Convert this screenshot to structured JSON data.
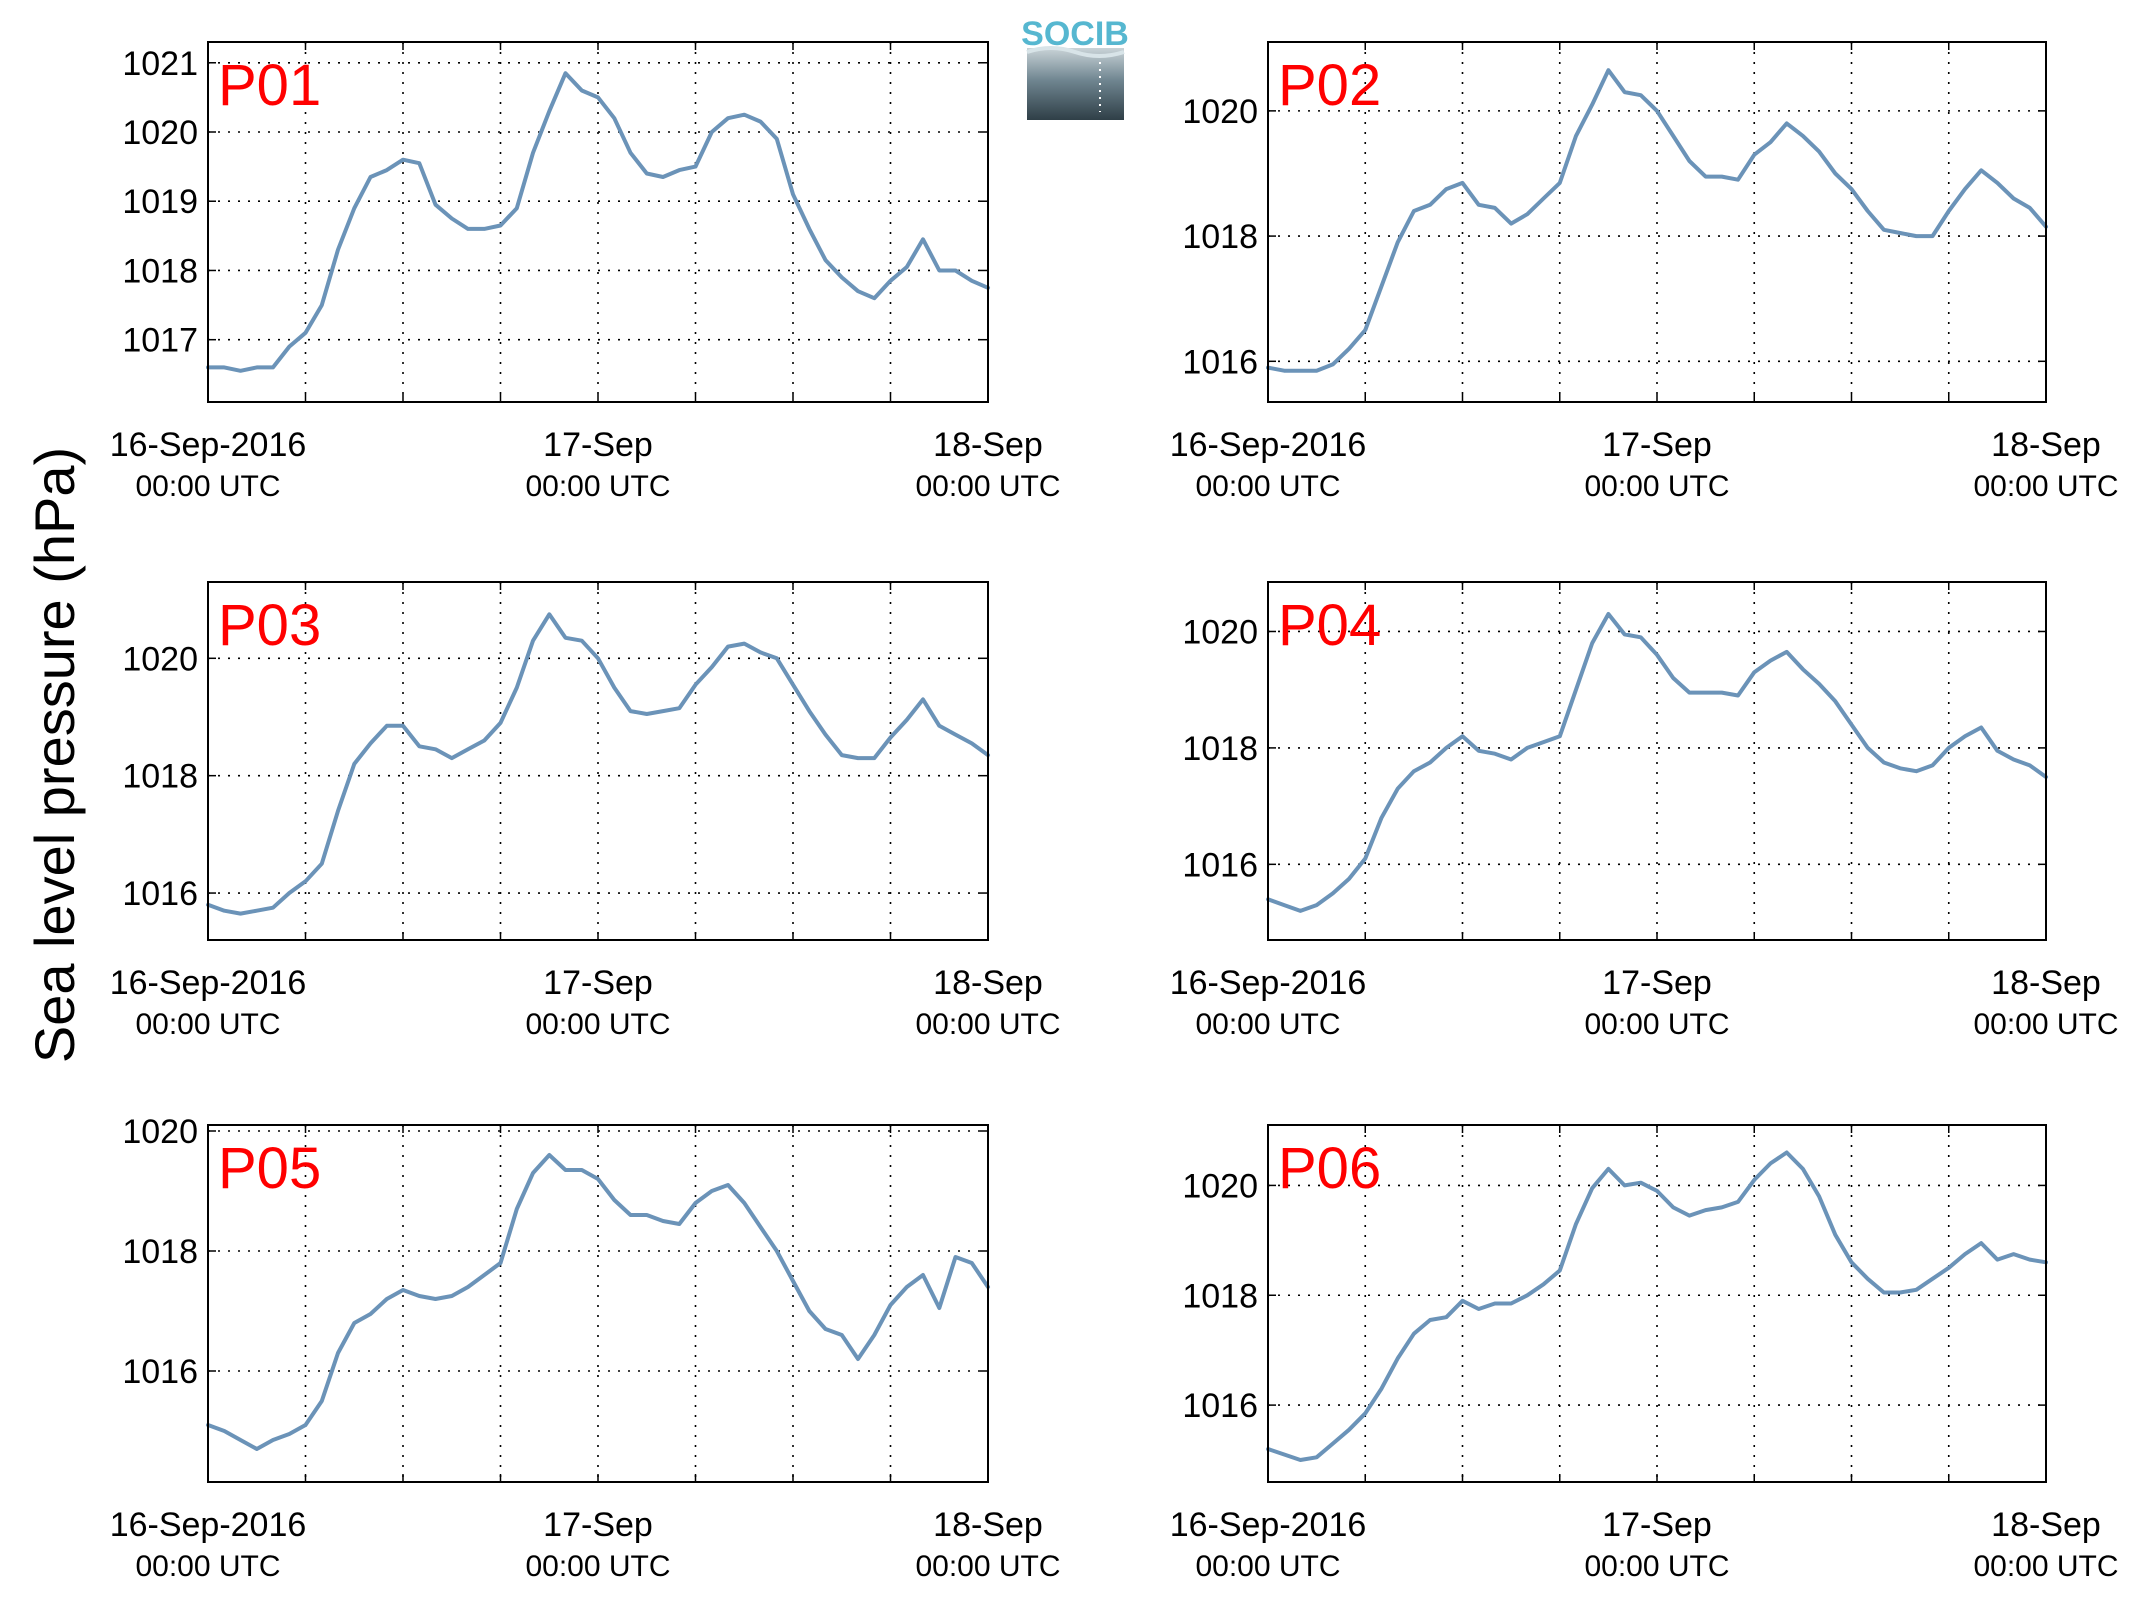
{
  "ylabel": "Sea level pressure (hPa)",
  "logo_text": "SOCIB",
  "colors": {
    "line": "#6b93b8",
    "panel_label": "#ff0000",
    "logo_top": "#56b7d0",
    "logo_bottom": "#33464f"
  },
  "chart_data": [
    {
      "type": "line",
      "title": "P01",
      "x_tick_labels": [
        {
          "main": "16-Sep-2016",
          "sub": "00:00 UTC"
        },
        {
          "main": "17-Sep",
          "sub": "00:00 UTC"
        },
        {
          "main": "18-Sep",
          "sub": "00:00 UTC"
        }
      ],
      "xlim": [
        0,
        48
      ],
      "ylim": [
        1016.1,
        1021.3
      ],
      "y_ticks": [
        1017,
        1018,
        1019,
        1020,
        1021
      ],
      "grid": true,
      "x": [
        0,
        1,
        2,
        3,
        4,
        5,
        6,
        7,
        8,
        9,
        10,
        11,
        12,
        13,
        14,
        15,
        16,
        17,
        18,
        19,
        20,
        21,
        22,
        23,
        24,
        25,
        26,
        27,
        28,
        29,
        30,
        31,
        32,
        33,
        34,
        35,
        36,
        37,
        38,
        39,
        40,
        41,
        42,
        43,
        44,
        45,
        46,
        47,
        48
      ],
      "values": [
        1016.6,
        1016.6,
        1016.55,
        1016.6,
        1016.6,
        1016.9,
        1017.1,
        1017.5,
        1018.3,
        1018.9,
        1019.35,
        1019.45,
        1019.6,
        1019.55,
        1018.95,
        1018.75,
        1018.6,
        1018.6,
        1018.65,
        1018.9,
        1019.7,
        1020.3,
        1020.85,
        1020.6,
        1020.5,
        1020.2,
        1019.7,
        1019.4,
        1019.35,
        1019.45,
        1019.5,
        1020.0,
        1020.2,
        1020.25,
        1020.15,
        1019.9,
        1019.1,
        1018.6,
        1018.15,
        1017.9,
        1017.7,
        1017.6,
        1017.85,
        1018.05,
        1018.45,
        1018.0,
        1018.0,
        1017.85,
        1017.75
      ]
    },
    {
      "type": "line",
      "title": "P02",
      "x_tick_labels": [
        {
          "main": "16-Sep-2016",
          "sub": "00:00 UTC"
        },
        {
          "main": "17-Sep",
          "sub": "00:00 UTC"
        },
        {
          "main": "18-Sep",
          "sub": "00:00 UTC"
        }
      ],
      "xlim": [
        0,
        48
      ],
      "ylim": [
        1015.35,
        1021.1
      ],
      "y_ticks": [
        1016,
        1018,
        1020
      ],
      "grid": true,
      "x": [
        0,
        1,
        2,
        3,
        4,
        5,
        6,
        7,
        8,
        9,
        10,
        11,
        12,
        13,
        14,
        15,
        16,
        17,
        18,
        19,
        20,
        21,
        22,
        23,
        24,
        25,
        26,
        27,
        28,
        29,
        30,
        31,
        32,
        33,
        34,
        35,
        36,
        37,
        38,
        39,
        40,
        41,
        42,
        43,
        44,
        45,
        46,
        47,
        48
      ],
      "values": [
        1015.9,
        1015.85,
        1015.85,
        1015.85,
        1015.95,
        1016.2,
        1016.5,
        1017.2,
        1017.9,
        1018.4,
        1018.5,
        1018.75,
        1018.85,
        1018.5,
        1018.45,
        1018.2,
        1018.35,
        1018.6,
        1018.85,
        1019.6,
        1020.1,
        1020.65,
        1020.3,
        1020.25,
        1020.0,
        1019.6,
        1019.2,
        1018.95,
        1018.95,
        1018.9,
        1019.3,
        1019.5,
        1019.8,
        1019.6,
        1019.35,
        1019.0,
        1018.75,
        1018.4,
        1018.1,
        1018.05,
        1018.0,
        1018.0,
        1018.4,
        1018.75,
        1019.05,
        1018.85,
        1018.6,
        1018.45,
        1018.15
      ]
    },
    {
      "type": "line",
      "title": "P03",
      "x_tick_labels": [
        {
          "main": "16-Sep-2016",
          "sub": "00:00 UTC"
        },
        {
          "main": "17-Sep",
          "sub": "00:00 UTC"
        },
        {
          "main": "18-Sep",
          "sub": "00:00 UTC"
        }
      ],
      "xlim": [
        0,
        48
      ],
      "ylim": [
        1015.2,
        1021.3
      ],
      "y_ticks": [
        1016,
        1018,
        1020
      ],
      "grid": true,
      "x": [
        0,
        1,
        2,
        3,
        4,
        5,
        6,
        7,
        8,
        9,
        10,
        11,
        12,
        13,
        14,
        15,
        16,
        17,
        18,
        19,
        20,
        21,
        22,
        23,
        24,
        25,
        26,
        27,
        28,
        29,
        30,
        31,
        32,
        33,
        34,
        35,
        36,
        37,
        38,
        39,
        40,
        41,
        42,
        43,
        44,
        45,
        46,
        47,
        48
      ],
      "values": [
        1015.8,
        1015.7,
        1015.65,
        1015.7,
        1015.75,
        1016.0,
        1016.2,
        1016.5,
        1017.4,
        1018.2,
        1018.55,
        1018.85,
        1018.85,
        1018.5,
        1018.45,
        1018.3,
        1018.45,
        1018.6,
        1018.9,
        1019.5,
        1020.3,
        1020.75,
        1020.35,
        1020.3,
        1020.0,
        1019.5,
        1019.1,
        1019.05,
        1019.1,
        1019.15,
        1019.55,
        1019.85,
        1020.2,
        1020.25,
        1020.1,
        1020.0,
        1019.55,
        1019.1,
        1018.7,
        1018.35,
        1018.3,
        1018.3,
        1018.65,
        1018.95,
        1019.3,
        1018.85,
        1018.7,
        1018.55,
        1018.35
      ]
    },
    {
      "type": "line",
      "title": "P04",
      "x_tick_labels": [
        {
          "main": "16-Sep-2016",
          "sub": "00:00 UTC"
        },
        {
          "main": "17-Sep",
          "sub": "00:00 UTC"
        },
        {
          "main": "18-Sep",
          "sub": "00:00 UTC"
        }
      ],
      "xlim": [
        0,
        48
      ],
      "ylim": [
        1014.7,
        1020.85
      ],
      "y_ticks": [
        1016,
        1018,
        1020
      ],
      "grid": true,
      "x": [
        0,
        1,
        2,
        3,
        4,
        5,
        6,
        7,
        8,
        9,
        10,
        11,
        12,
        13,
        14,
        15,
        16,
        17,
        18,
        19,
        20,
        21,
        22,
        23,
        24,
        25,
        26,
        27,
        28,
        29,
        30,
        31,
        32,
        33,
        34,
        35,
        36,
        37,
        38,
        39,
        40,
        41,
        42,
        43,
        44,
        45,
        46,
        47,
        48
      ],
      "values": [
        1015.4,
        1015.3,
        1015.2,
        1015.3,
        1015.5,
        1015.75,
        1016.1,
        1016.8,
        1017.3,
        1017.6,
        1017.75,
        1018.0,
        1018.2,
        1017.95,
        1017.9,
        1017.8,
        1018.0,
        1018.1,
        1018.2,
        1019.0,
        1019.8,
        1020.3,
        1019.95,
        1019.9,
        1019.6,
        1019.2,
        1018.95,
        1018.95,
        1018.95,
        1018.9,
        1019.3,
        1019.5,
        1019.65,
        1019.35,
        1019.1,
        1018.8,
        1018.4,
        1018.0,
        1017.75,
        1017.65,
        1017.6,
        1017.7,
        1018.0,
        1018.2,
        1018.35,
        1017.95,
        1017.8,
        1017.7,
        1017.5
      ]
    },
    {
      "type": "line",
      "title": "P05",
      "x_tick_labels": [
        {
          "main": "16-Sep-2016",
          "sub": "00:00 UTC"
        },
        {
          "main": "17-Sep",
          "sub": "00:00 UTC"
        },
        {
          "main": "18-Sep",
          "sub": "00:00 UTC"
        }
      ],
      "xlim": [
        0,
        48
      ],
      "ylim": [
        1014.15,
        1020.1
      ],
      "y_ticks": [
        1016,
        1018,
        1020
      ],
      "grid": true,
      "x": [
        0,
        1,
        2,
        3,
        4,
        5,
        6,
        7,
        8,
        9,
        10,
        11,
        12,
        13,
        14,
        15,
        16,
        17,
        18,
        19,
        20,
        21,
        22,
        23,
        24,
        25,
        26,
        27,
        28,
        29,
        30,
        31,
        32,
        33,
        34,
        35,
        36,
        37,
        38,
        39,
        40,
        41,
        42,
        43,
        44,
        45,
        46,
        47,
        48
      ],
      "values": [
        1015.1,
        1015.0,
        1014.85,
        1014.7,
        1014.85,
        1014.95,
        1015.1,
        1015.5,
        1016.3,
        1016.8,
        1016.95,
        1017.2,
        1017.35,
        1017.25,
        1017.2,
        1017.25,
        1017.4,
        1017.6,
        1017.8,
        1018.7,
        1019.3,
        1019.6,
        1019.35,
        1019.35,
        1019.2,
        1018.85,
        1018.6,
        1018.6,
        1018.5,
        1018.45,
        1018.8,
        1019.0,
        1019.1,
        1018.8,
        1018.4,
        1018.0,
        1017.5,
        1017.0,
        1016.7,
        1016.6,
        1016.2,
        1016.6,
        1017.1,
        1017.4,
        1017.6,
        1017.05,
        1017.9,
        1017.8,
        1017.4
      ]
    },
    {
      "type": "line",
      "title": "P06",
      "x_tick_labels": [
        {
          "main": "16-Sep-2016",
          "sub": "00:00 UTC"
        },
        {
          "main": "17-Sep",
          "sub": "00:00 UTC"
        },
        {
          "main": "18-Sep",
          "sub": "00:00 UTC"
        }
      ],
      "xlim": [
        0,
        48
      ],
      "ylim": [
        1014.6,
        1021.1
      ],
      "y_ticks": [
        1016,
        1018,
        1020
      ],
      "grid": true,
      "x": [
        0,
        1,
        2,
        3,
        4,
        5,
        6,
        7,
        8,
        9,
        10,
        11,
        12,
        13,
        14,
        15,
        16,
        17,
        18,
        19,
        20,
        21,
        22,
        23,
        24,
        25,
        26,
        27,
        28,
        29,
        30,
        31,
        32,
        33,
        34,
        35,
        36,
        37,
        38,
        39,
        40,
        41,
        42,
        43,
        44,
        45,
        46,
        47,
        48
      ],
      "values": [
        1015.2,
        1015.1,
        1015.0,
        1015.05,
        1015.3,
        1015.55,
        1015.85,
        1016.3,
        1016.85,
        1017.3,
        1017.55,
        1017.6,
        1017.9,
        1017.75,
        1017.85,
        1017.85,
        1018.0,
        1018.2,
        1018.45,
        1019.3,
        1019.95,
        1020.3,
        1020.0,
        1020.05,
        1019.9,
        1019.6,
        1019.45,
        1019.55,
        1019.6,
        1019.7,
        1020.1,
        1020.4,
        1020.6,
        1020.3,
        1019.8,
        1019.1,
        1018.6,
        1018.3,
        1018.05,
        1018.05,
        1018.1,
        1018.3,
        1018.5,
        1018.75,
        1018.95,
        1018.65,
        1018.75,
        1018.65,
        1018.6
      ]
    }
  ]
}
